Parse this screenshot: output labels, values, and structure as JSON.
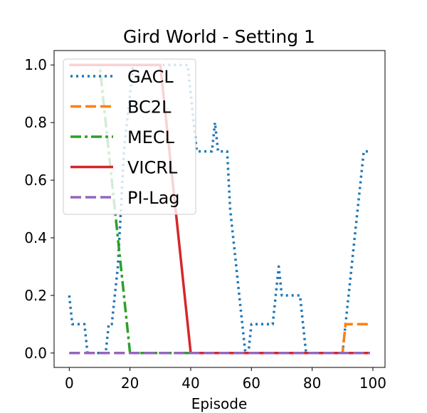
{
  "chart_data": {
    "type": "line",
    "title": "Gird World - Setting 1",
    "xlabel": "Episode",
    "ylabel": "",
    "xlim": [
      -5,
      104
    ],
    "ylim": [
      -0.05,
      1.05
    ],
    "xticks": [
      0,
      20,
      40,
      60,
      80,
      100
    ],
    "yticks": [
      0.0,
      0.2,
      0.4,
      0.6,
      0.8,
      1.0
    ],
    "xtick_labels": [
      "0",
      "20",
      "40",
      "60",
      "80",
      "100"
    ],
    "ytick_labels": [
      "0.0",
      "0.2",
      "0.4",
      "0.6",
      "0.8",
      "1.0"
    ],
    "legend_position": "upper-left",
    "series": [
      {
        "name": "GACL",
        "color": "#1f77b4",
        "style": "dotted",
        "x": [
          0,
          1,
          2,
          3,
          4,
          5,
          6,
          7,
          8,
          9,
          10,
          11,
          12,
          13,
          14,
          15,
          16,
          17,
          18,
          19,
          20,
          21,
          22,
          23,
          24,
          25,
          26,
          27,
          28,
          29,
          30,
          31,
          32,
          33,
          34,
          35,
          36,
          37,
          38,
          39,
          40,
          41,
          42,
          43,
          44,
          45,
          46,
          47,
          48,
          49,
          50,
          51,
          52,
          53,
          54,
          55,
          56,
          57,
          58,
          59,
          60,
          61,
          62,
          63,
          64,
          65,
          66,
          67,
          68,
          69,
          70,
          71,
          72,
          73,
          74,
          75,
          76,
          77,
          78,
          79,
          80,
          81,
          82,
          83,
          84,
          85,
          86,
          87,
          88,
          89,
          90,
          91,
          92,
          93,
          94,
          95,
          96,
          97,
          98,
          99
        ],
        "y": [
          0.2,
          0.1,
          0.1,
          0.1,
          0.1,
          0.1,
          0.0,
          0.0,
          0.0,
          0.0,
          0.0,
          0.0,
          0.0,
          0.1,
          0.1,
          0.2,
          0.3,
          0.5,
          0.7,
          0.8,
          0.9,
          1.0,
          1.0,
          1.0,
          1.0,
          1.0,
          1.0,
          1.0,
          1.0,
          1.0,
          1.0,
          1.0,
          1.0,
          1.0,
          1.0,
          1.0,
          1.0,
          1.0,
          1.0,
          1.0,
          0.9,
          0.8,
          0.7,
          0.7,
          0.7,
          0.7,
          0.7,
          0.7,
          0.8,
          0.7,
          0.7,
          0.7,
          0.7,
          0.5,
          0.4,
          0.3,
          0.2,
          0.1,
          0.0,
          0.0,
          0.1,
          0.1,
          0.1,
          0.1,
          0.1,
          0.1,
          0.1,
          0.1,
          0.2,
          0.3,
          0.2,
          0.2,
          0.2,
          0.2,
          0.2,
          0.2,
          0.2,
          0.1,
          0.0,
          0.0,
          0.0,
          0.0,
          0.0,
          0.0,
          0.0,
          0.0,
          0.0,
          0.0,
          0.0,
          0.0,
          0.0,
          0.1,
          0.2,
          0.3,
          0.4,
          0.5,
          0.6,
          0.7,
          0.7,
          0.7
        ]
      },
      {
        "name": "BC2L",
        "color": "#ff7f0e",
        "style": "dashed",
        "x": [
          0,
          90,
          91,
          99
        ],
        "y": [
          0.0,
          0.0,
          0.1,
          0.1
        ]
      },
      {
        "name": "MECL",
        "color": "#2ca02c",
        "style": "dashdot",
        "x": [
          0,
          10,
          20,
          99
        ],
        "y": [
          1.0,
          1.0,
          0.0,
          0.0
        ]
      },
      {
        "name": "VICRL",
        "color": "#d62728",
        "style": "solid",
        "x": [
          0,
          30,
          40,
          99
        ],
        "y": [
          1.0,
          1.0,
          0.0,
          0.0
        ]
      },
      {
        "name": "PI-Lag",
        "color": "#9467bd",
        "style": "dashed",
        "x": [
          0,
          99
        ],
        "y": [
          0.0,
          0.0
        ]
      }
    ]
  }
}
